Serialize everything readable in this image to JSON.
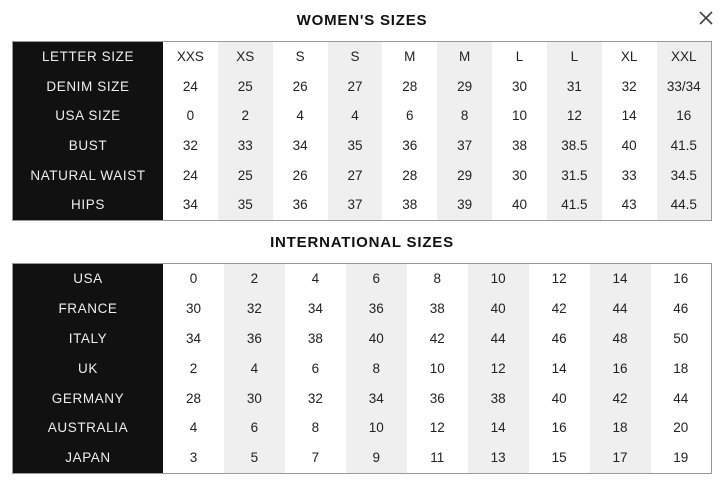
{
  "womens": {
    "title": "WOMEN'S SIZES",
    "rows": [
      {
        "label": "LETTER SIZE",
        "values": [
          "XXS",
          "XS",
          "S",
          "S",
          "M",
          "M",
          "L",
          "L",
          "XL",
          "XXL"
        ]
      },
      {
        "label": "DENIM SIZE",
        "values": [
          "24",
          "25",
          "26",
          "27",
          "28",
          "29",
          "30",
          "31",
          "32",
          "33/34"
        ]
      },
      {
        "label": "USA SIZE",
        "values": [
          "0",
          "2",
          "4",
          "4",
          "6",
          "8",
          "10",
          "12",
          "14",
          "16"
        ]
      },
      {
        "label": "BUST",
        "values": [
          "32",
          "33",
          "34",
          "35",
          "36",
          "37",
          "38",
          "38.5",
          "40",
          "41.5"
        ]
      },
      {
        "label": "NATURAL WAIST",
        "values": [
          "24",
          "25",
          "26",
          "27",
          "28",
          "29",
          "30",
          "31.5",
          "33",
          "34.5"
        ]
      },
      {
        "label": "HIPS",
        "values": [
          "34",
          "35",
          "36",
          "37",
          "38",
          "39",
          "40",
          "41.5",
          "43",
          "44.5"
        ]
      }
    ]
  },
  "international": {
    "title": "INTERNATIONAL SIZES",
    "rows": [
      {
        "label": "USA",
        "values": [
          "0",
          "2",
          "4",
          "6",
          "8",
          "10",
          "12",
          "14",
          "16"
        ]
      },
      {
        "label": "FRANCE",
        "values": [
          "30",
          "32",
          "34",
          "36",
          "38",
          "40",
          "42",
          "44",
          "46"
        ]
      },
      {
        "label": "ITALY",
        "values": [
          "34",
          "36",
          "38",
          "40",
          "42",
          "44",
          "46",
          "48",
          "50"
        ]
      },
      {
        "label": "UK",
        "values": [
          "2",
          "4",
          "6",
          "8",
          "10",
          "12",
          "14",
          "16",
          "18"
        ]
      },
      {
        "label": "GERMANY",
        "values": [
          "28",
          "30",
          "32",
          "34",
          "36",
          "38",
          "40",
          "42",
          "44"
        ]
      },
      {
        "label": "AUSTRALIA",
        "values": [
          "4",
          "6",
          "8",
          "10",
          "12",
          "14",
          "16",
          "18",
          "20"
        ]
      },
      {
        "label": "JAPAN",
        "values": [
          "3",
          "5",
          "7",
          "9",
          "11",
          "13",
          "15",
          "17",
          "19"
        ]
      }
    ]
  },
  "close_icon": "close-icon",
  "colors": {
    "label_bg": "#111111",
    "alt_column": "#efefef",
    "border": "#9a9a9a"
  }
}
